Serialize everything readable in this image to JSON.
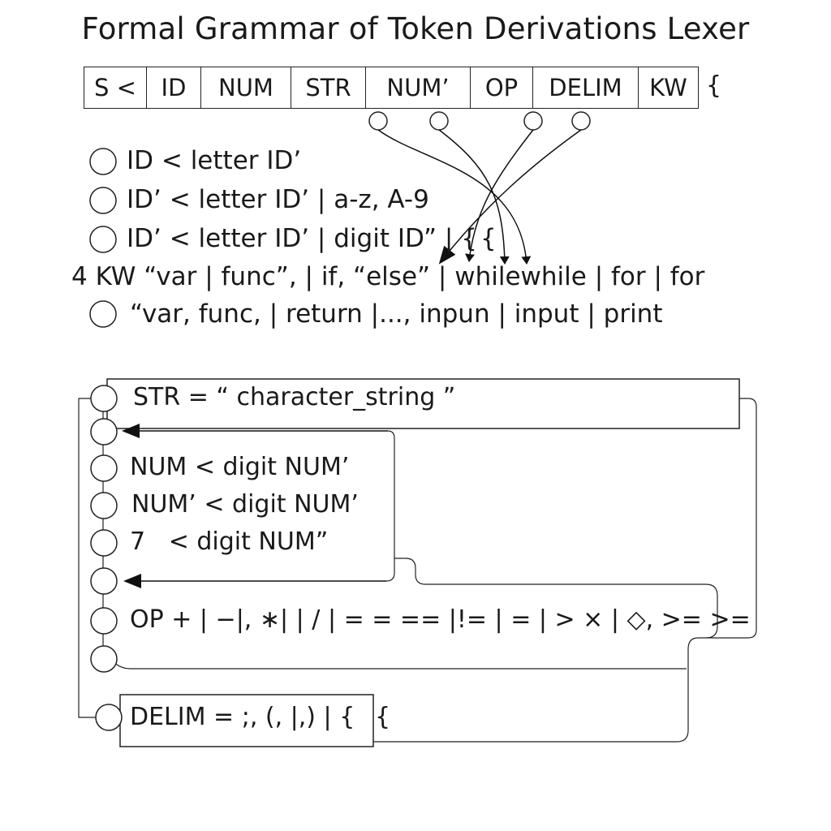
{
  "title": "Formal Grammar of Token Derivations Lexer",
  "header": {
    "cells": [
      "S <",
      "ID",
      "NUM",
      "STR",
      "NUM’",
      "OP",
      "DELIM",
      "KW"
    ],
    "trailing": "{"
  },
  "rules": [
    "ID < letter ID’",
    "ID’ < letter ID’ | a-z, A-9",
    "ID’ < letter ID’ | digit ID” | {",
    "4 KW “var | func”, | if, “else” | whilewhile | for | for",
    "“var, func, | return |..., inpun | input | print"
  ],
  "rule_extra": "{",
  "lower": {
    "str_rule": "STR = “ character_string ”",
    "num_rules": [
      "NUM < digit NUM’",
      "NUM’ < digit NUM’",
      "7   < digit NUM”"
    ],
    "op_rule": "OP + | −|, ∗| | / | = = == |!= | = | > × | ◇, >= >=",
    "delim_rule": "DELIM = ;, (, |,) | {",
    "delim_extra": "{"
  }
}
